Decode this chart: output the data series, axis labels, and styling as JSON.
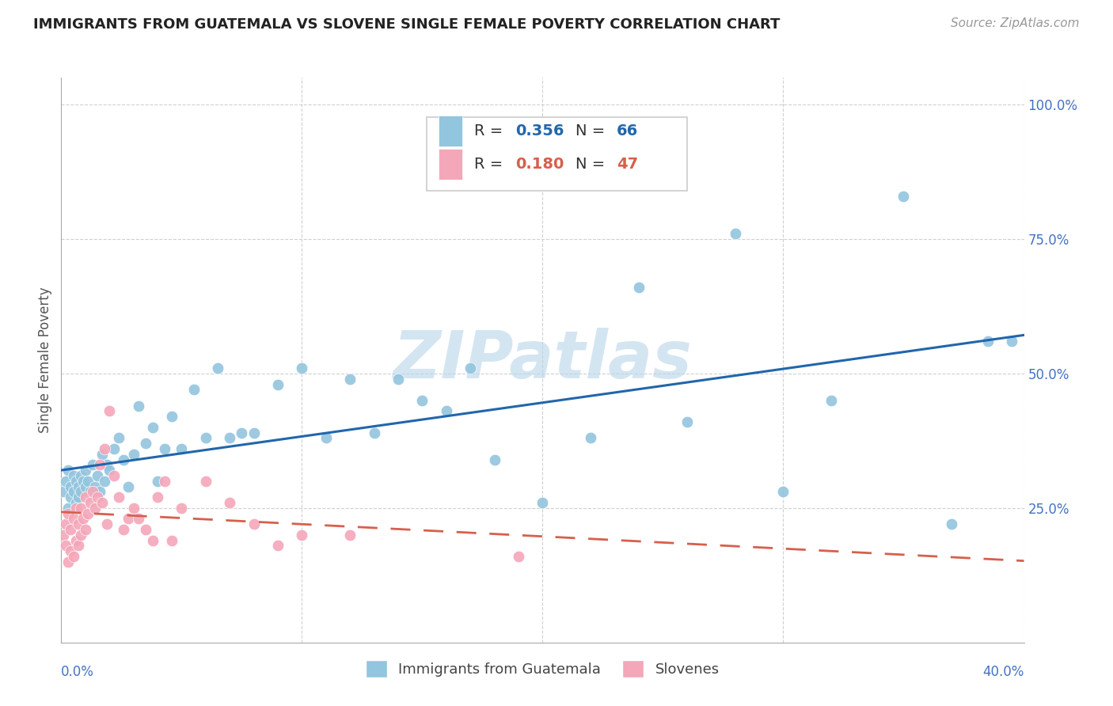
{
  "title": "IMMIGRANTS FROM GUATEMALA VS SLOVENE SINGLE FEMALE POVERTY CORRELATION CHART",
  "source": "Source: ZipAtlas.com",
  "ylabel": "Single Female Poverty",
  "legend1_R": "0.356",
  "legend1_N": "66",
  "legend2_R": "0.180",
  "legend2_N": "47",
  "blue_color": "#92c5de",
  "pink_color": "#f4a7b9",
  "regression_blue_color": "#2166ac",
  "regression_pink_color": "#d6604d",
  "watermark": "ZIPatlas",
  "background_color": "#ffffff",
  "xlim": [
    0.0,
    0.4
  ],
  "ylim": [
    0.0,
    1.05
  ],
  "yticks": [
    0.0,
    0.25,
    0.5,
    0.75,
    1.0
  ],
  "ytick_labels": [
    "",
    "25.0%",
    "50.0%",
    "75.0%",
    "100.0%"
  ],
  "xticks": [
    0.0,
    0.1,
    0.2,
    0.3,
    0.4
  ],
  "guatemala_x": [
    0.001,
    0.002,
    0.003,
    0.003,
    0.004,
    0.004,
    0.005,
    0.005,
    0.006,
    0.006,
    0.007,
    0.007,
    0.008,
    0.008,
    0.009,
    0.01,
    0.01,
    0.011,
    0.012,
    0.013,
    0.014,
    0.015,
    0.016,
    0.017,
    0.018,
    0.019,
    0.02,
    0.022,
    0.024,
    0.026,
    0.028,
    0.03,
    0.032,
    0.035,
    0.038,
    0.04,
    0.043,
    0.046,
    0.05,
    0.055,
    0.06,
    0.065,
    0.07,
    0.075,
    0.08,
    0.09,
    0.1,
    0.11,
    0.12,
    0.13,
    0.14,
    0.15,
    0.16,
    0.17,
    0.18,
    0.2,
    0.22,
    0.24,
    0.26,
    0.28,
    0.3,
    0.32,
    0.35,
    0.37,
    0.385,
    0.395
  ],
  "guatemala_y": [
    0.28,
    0.3,
    0.25,
    0.32,
    0.27,
    0.29,
    0.31,
    0.28,
    0.3,
    0.26,
    0.29,
    0.27,
    0.31,
    0.28,
    0.3,
    0.29,
    0.32,
    0.3,
    0.28,
    0.33,
    0.29,
    0.31,
    0.28,
    0.35,
    0.3,
    0.33,
    0.32,
    0.36,
    0.38,
    0.34,
    0.29,
    0.35,
    0.44,
    0.37,
    0.4,
    0.3,
    0.36,
    0.42,
    0.36,
    0.47,
    0.38,
    0.51,
    0.38,
    0.39,
    0.39,
    0.48,
    0.51,
    0.38,
    0.49,
    0.39,
    0.49,
    0.45,
    0.43,
    0.51,
    0.34,
    0.26,
    0.38,
    0.66,
    0.41,
    0.76,
    0.28,
    0.45,
    0.83,
    0.22,
    0.56,
    0.56
  ],
  "slovene_x": [
    0.001,
    0.002,
    0.002,
    0.003,
    0.003,
    0.004,
    0.004,
    0.005,
    0.005,
    0.006,
    0.006,
    0.007,
    0.007,
    0.008,
    0.008,
    0.009,
    0.01,
    0.01,
    0.011,
    0.012,
    0.013,
    0.014,
    0.015,
    0.016,
    0.017,
    0.018,
    0.019,
    0.02,
    0.022,
    0.024,
    0.026,
    0.028,
    0.03,
    0.032,
    0.035,
    0.038,
    0.04,
    0.043,
    0.046,
    0.05,
    0.06,
    0.07,
    0.08,
    0.09,
    0.1,
    0.12,
    0.19
  ],
  "slovene_y": [
    0.2,
    0.18,
    0.22,
    0.15,
    0.24,
    0.17,
    0.21,
    0.16,
    0.23,
    0.19,
    0.25,
    0.18,
    0.22,
    0.2,
    0.25,
    0.23,
    0.21,
    0.27,
    0.24,
    0.26,
    0.28,
    0.25,
    0.27,
    0.33,
    0.26,
    0.36,
    0.22,
    0.43,
    0.31,
    0.27,
    0.21,
    0.23,
    0.25,
    0.23,
    0.21,
    0.19,
    0.27,
    0.3,
    0.19,
    0.25,
    0.3,
    0.26,
    0.22,
    0.18,
    0.2,
    0.2,
    0.16
  ],
  "title_fontsize": 13,
  "source_fontsize": 11,
  "tick_fontsize": 12,
  "ylabel_fontsize": 12,
  "legend_fontsize": 14
}
